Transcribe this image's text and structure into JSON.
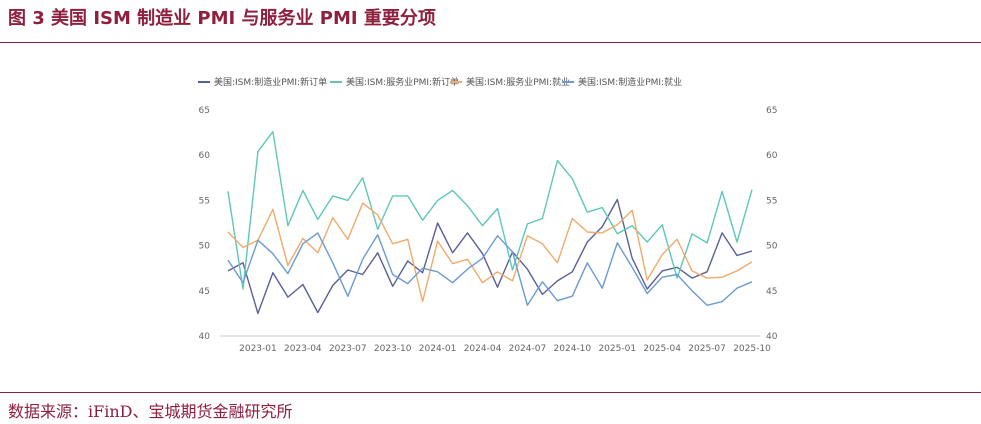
{
  "header": {
    "title": "图 3 美国 ISM 制造业 PMI 与服务业 PMI 重要分项"
  },
  "footer": {
    "source": "数据来源：iFinD、宝城期货金融研究所"
  },
  "chart_data": {
    "type": "line",
    "title": "",
    "xlabel": "",
    "ylabel": "",
    "ylim": [
      40,
      65
    ],
    "y_ticks": [
      40,
      45,
      50,
      55,
      60,
      65
    ],
    "y2lim": [
      40,
      65
    ],
    "y2_ticks": [
      40,
      45,
      50,
      55,
      60,
      65
    ],
    "grid": false,
    "legend_position": "top",
    "x": [
      "2022-11",
      "2022-12",
      "2023-01",
      "2023-02",
      "2023-03",
      "2023-04",
      "2023-05",
      "2023-06",
      "2023-07",
      "2023-08",
      "2023-09",
      "2023-10",
      "2023-11",
      "2023-12",
      "2024-01",
      "2024-02",
      "2024-03",
      "2024-04",
      "2024-05",
      "2024-06",
      "2024-07",
      "2024-08",
      "2024-09",
      "2024-10",
      "2024-11",
      "2024-12",
      "2025-01",
      "2025-02",
      "2025-03",
      "2025-04",
      "2025-05",
      "2025-06",
      "2025-07",
      "2025-08",
      "2025-09",
      "2025-10"
    ],
    "x_tick_labels": [
      "2023-01",
      "2023-04",
      "2023-07",
      "2023-10",
      "2024-01",
      "2024-04",
      "2024-07",
      "2024-10",
      "2025-01",
      "2025-04",
      "2025-07",
      "2025-10"
    ],
    "series": [
      {
        "name": "美国:ISM:制造业PMI:新订单",
        "color": "#5b5f97",
        "values": [
          47.2,
          48.1,
          42.5,
          47.0,
          44.3,
          45.7,
          42.6,
          45.6,
          47.3,
          46.8,
          49.2,
          45.5,
          48.3,
          47.0,
          52.5,
          49.2,
          51.4,
          49.1,
          45.4,
          49.3,
          47.4,
          44.6,
          46.1,
          47.1,
          50.4,
          52.1,
          55.1,
          48.6,
          45.2,
          47.2,
          47.6,
          46.4,
          47.1,
          51.4,
          48.9,
          49.4
        ]
      },
      {
        "name": "美国:ISM:服务业PMI:新订单",
        "color": "#5ec8b8",
        "values": [
          56.0,
          45.2,
          60.4,
          62.6,
          52.2,
          56.1,
          52.9,
          55.5,
          55.0,
          57.5,
          51.8,
          55.5,
          55.5,
          52.8,
          55.0,
          56.1,
          54.4,
          52.2,
          54.1,
          47.3,
          52.4,
          53.0,
          59.4,
          57.4,
          53.7,
          54.2,
          51.3,
          52.2,
          50.4,
          52.3,
          46.4,
          51.3,
          50.3,
          56.0,
          50.4,
          56.2
        ]
      },
      {
        "name": "美国:ISM:服务业PMI:就业",
        "color": "#f0ab6c",
        "values": [
          51.5,
          49.8,
          50.6,
          54.0,
          47.8,
          50.8,
          49.2,
          53.1,
          50.7,
          54.7,
          53.4,
          50.2,
          50.7,
          43.8,
          50.5,
          48.0,
          48.5,
          45.9,
          47.1,
          46.1,
          51.1,
          50.2,
          48.1,
          53.0,
          51.5,
          51.4,
          52.3,
          53.9,
          46.2,
          49.0,
          50.7,
          47.2,
          46.4,
          46.5,
          47.2,
          48.2
        ]
      },
      {
        "name": "美国:ISM:制造业PMI:就业",
        "color": "#6b9bd1",
        "values": [
          48.4,
          45.9,
          50.6,
          49.1,
          46.9,
          50.2,
          51.4,
          48.1,
          44.4,
          48.5,
          51.2,
          46.8,
          45.8,
          47.5,
          47.1,
          45.9,
          47.4,
          48.6,
          51.1,
          49.3,
          43.4,
          46.0,
          43.9,
          44.4,
          48.1,
          45.3,
          50.3,
          47.6,
          44.7,
          46.5,
          46.8,
          45.0,
          43.4,
          43.8,
          45.3,
          46.0
        ]
      }
    ]
  }
}
